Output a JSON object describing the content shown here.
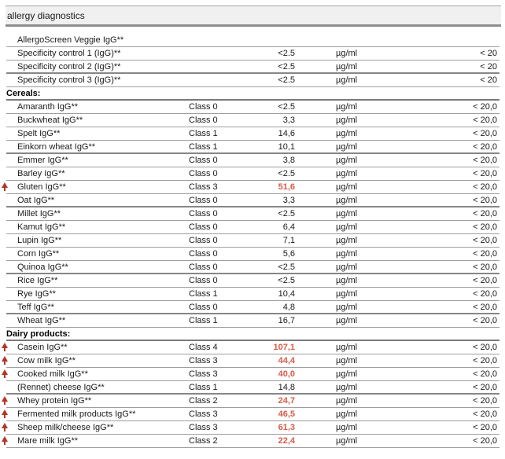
{
  "title": "allergy diagnostics",
  "colors": {
    "flag_arrow": "#b23527",
    "high_value": "#d95b49",
    "header_band_bg": "#f0f0f0"
  },
  "rows": [
    {
      "type": "item",
      "flag": false,
      "name": "AllergoScreen Veggie IgG**",
      "class_label": "",
      "value": "",
      "high": false,
      "unit": "",
      "range": "",
      "thick": false
    },
    {
      "type": "item",
      "flag": false,
      "name": "Specificity control 1 (IgG)**",
      "class_label": "",
      "value": "<2.5",
      "high": false,
      "unit": "µg/ml",
      "range": "< 20",
      "thick": false
    },
    {
      "type": "item",
      "flag": false,
      "name": "Specificity control 2 (IgG)**",
      "class_label": "",
      "value": "<2.5",
      "high": false,
      "unit": "µg/ml",
      "range": "< 20",
      "thick": true
    },
    {
      "type": "item",
      "flag": false,
      "name": "Specificity control 3 (IgG)**",
      "class_label": "",
      "value": "<2.5",
      "high": false,
      "unit": "µg/ml",
      "range": "< 20",
      "thick": false
    },
    {
      "type": "section",
      "name": "Cereals:"
    },
    {
      "type": "item",
      "flag": false,
      "name": "Amaranth IgG**",
      "class_label": "Class 0",
      "value": "<2.5",
      "high": false,
      "unit": "µg/ml",
      "range": "< 20,0",
      "thick": false
    },
    {
      "type": "item",
      "flag": false,
      "name": "Buckwheat IgG**",
      "class_label": "Class 0",
      "value": "3,3",
      "high": false,
      "unit": "µg/ml",
      "range": "< 20,0",
      "thick": false
    },
    {
      "type": "item",
      "flag": false,
      "name": "Spelt IgG**",
      "class_label": "Class 1",
      "value": "14,6",
      "high": false,
      "unit": "µg/ml",
      "range": "< 20,0",
      "thick": false
    },
    {
      "type": "item",
      "flag": false,
      "name": "Einkorn wheat IgG**",
      "class_label": "Class 1",
      "value": "10,1",
      "high": false,
      "unit": "µg/ml",
      "range": "< 20,0",
      "thick": true
    },
    {
      "type": "item",
      "flag": false,
      "name": "Emmer IgG**",
      "class_label": "Class 0",
      "value": "3,8",
      "high": false,
      "unit": "µg/ml",
      "range": "< 20,0",
      "thick": false
    },
    {
      "type": "item",
      "flag": false,
      "name": "Barley IgG**",
      "class_label": "Class 0",
      "value": "<2.5",
      "high": false,
      "unit": "µg/ml",
      "range": "< 20,0",
      "thick": false
    },
    {
      "type": "item",
      "flag": true,
      "name": "Gluten IgG**",
      "class_label": "Class 3",
      "value": "51,6",
      "high": true,
      "unit": "µg/ml",
      "range": "< 20,0",
      "thick": false
    },
    {
      "type": "item",
      "flag": false,
      "name": "Oat IgG**",
      "class_label": "Class 0",
      "value": "3,3",
      "high": false,
      "unit": "µg/ml",
      "range": "< 20,0",
      "thick": true
    },
    {
      "type": "item",
      "flag": false,
      "name": "Millet IgG**",
      "class_label": "Class 0",
      "value": "<2.5",
      "high": false,
      "unit": "µg/ml",
      "range": "< 20,0",
      "thick": false
    },
    {
      "type": "item",
      "flag": false,
      "name": "Kamut IgG**",
      "class_label": "Class 0",
      "value": "6,4",
      "high": false,
      "unit": "µg/ml",
      "range": "< 20,0",
      "thick": false
    },
    {
      "type": "item",
      "flag": false,
      "name": "Lupin IgG**",
      "class_label": "Class 0",
      "value": "7,1",
      "high": false,
      "unit": "µg/ml",
      "range": "< 20,0",
      "thick": false
    },
    {
      "type": "item",
      "flag": false,
      "name": "Corn IgG**",
      "class_label": "Class 0",
      "value": "5,6",
      "high": false,
      "unit": "µg/ml",
      "range": "< 20,0",
      "thick": false
    },
    {
      "type": "item",
      "flag": false,
      "name": "Quinoa IgG**",
      "class_label": "Class 0",
      "value": "<2.5",
      "high": false,
      "unit": "µg/ml",
      "range": "< 20,0",
      "thick": true
    },
    {
      "type": "item",
      "flag": false,
      "name": "Rice IgG**",
      "class_label": "Class 0",
      "value": "<2.5",
      "high": false,
      "unit": "µg/ml",
      "range": "< 20,0",
      "thick": false
    },
    {
      "type": "item",
      "flag": false,
      "name": "Rye IgG**",
      "class_label": "Class 1",
      "value": "10,4",
      "high": false,
      "unit": "µg/ml",
      "range": "< 20,0",
      "thick": false
    },
    {
      "type": "item",
      "flag": false,
      "name": "Teff IgG**",
      "class_label": "Class 0",
      "value": "4,8",
      "high": false,
      "unit": "µg/ml",
      "range": "< 20,0",
      "thick": true
    },
    {
      "type": "item",
      "flag": false,
      "name": "Wheat IgG**",
      "class_label": "Class 1",
      "value": "16,7",
      "high": false,
      "unit": "µg/ml",
      "range": "< 20,0",
      "thick": false
    },
    {
      "type": "section",
      "name": "Dairy products:"
    },
    {
      "type": "item",
      "flag": true,
      "name": "Casein IgG**",
      "class_label": "Class 4",
      "value": "107,1",
      "high": true,
      "unit": "µg/ml",
      "range": "< 20,0",
      "thick": false
    },
    {
      "type": "item",
      "flag": true,
      "name": "Cow milk IgG**",
      "class_label": "Class 3",
      "value": "44,4",
      "high": true,
      "unit": "µg/ml",
      "range": "< 20,0",
      "thick": false
    },
    {
      "type": "item",
      "flag": true,
      "name": "Cooked milk IgG**",
      "class_label": "Class 3",
      "value": "40,0",
      "high": true,
      "unit": "µg/ml",
      "range": "< 20,0",
      "thick": false
    },
    {
      "type": "item",
      "flag": false,
      "name": "(Rennet) cheese IgG**",
      "class_label": "Class 1",
      "value": "14,8",
      "high": false,
      "unit": "µg/ml",
      "range": "< 20,0",
      "thick": true
    },
    {
      "type": "item",
      "flag": true,
      "name": "Whey protein IgG**",
      "class_label": "Class 2",
      "value": "24,7",
      "high": true,
      "unit": "µg/ml",
      "range": "< 20,0",
      "thick": false
    },
    {
      "type": "item",
      "flag": true,
      "name": "Fermented milk products IgG**",
      "class_label": "Class 3",
      "value": "46,5",
      "high": true,
      "unit": "µg/ml",
      "range": "< 20,0",
      "thick": false
    },
    {
      "type": "item",
      "flag": true,
      "name": "Sheep milk/cheese IgG**",
      "class_label": "Class 3",
      "value": "61,3",
      "high": true,
      "unit": "µg/ml",
      "range": "< 20,0",
      "thick": false
    },
    {
      "type": "item",
      "flag": true,
      "name": "Mare milk IgG**",
      "class_label": "Class 2",
      "value": "22,4",
      "high": true,
      "unit": "µg/ml",
      "range": "< 20,0",
      "thick": false
    }
  ]
}
